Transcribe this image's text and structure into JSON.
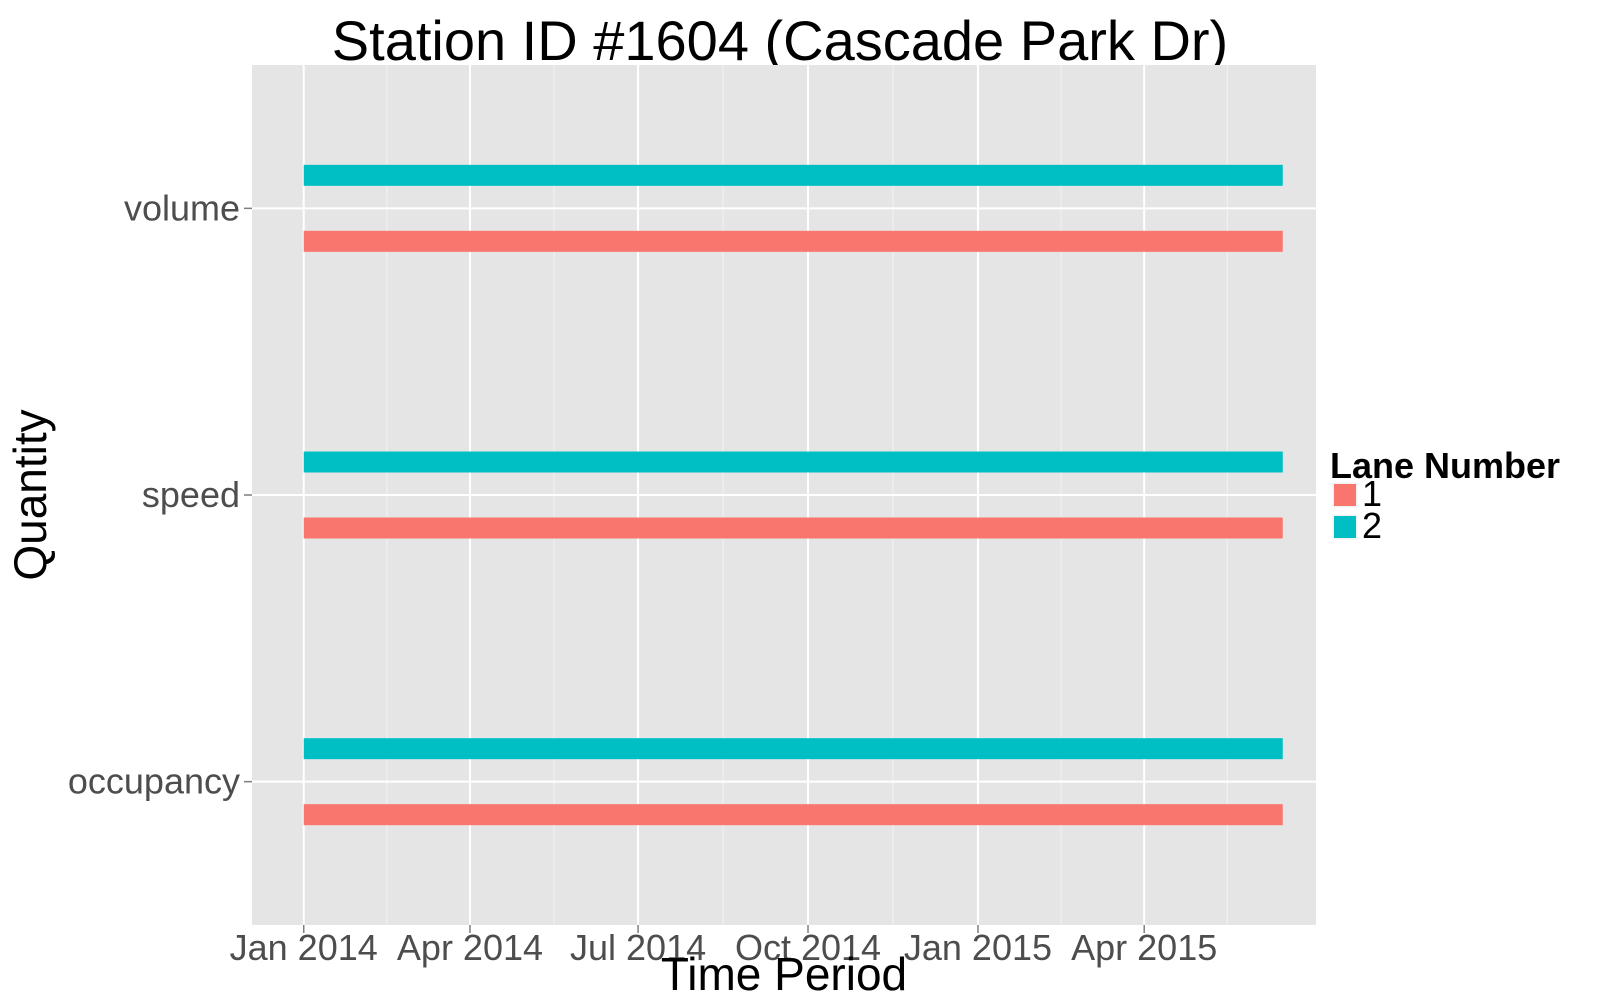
{
  "chart_data": {
    "type": "bar",
    "title": "Station ID #1604 (Cascade Park Dr)",
    "xlabel": "Time Period",
    "ylabel": "Quantity",
    "x_axis_type": "date",
    "x_ticks": [
      "2014-01-01",
      "2014-04-01",
      "2014-07-01",
      "2014-10-01",
      "2015-01-01",
      "2015-04-01"
    ],
    "x_tick_labels": [
      "Jan 2014",
      "Apr 2014",
      "Jul 2014",
      "Oct 2014",
      "Jan 2015",
      "Apr 2015"
    ],
    "xlim": [
      "2013-12-04",
      "2015-07-03"
    ],
    "categories": [
      "volume",
      "speed",
      "occupancy"
    ],
    "legend": {
      "title": "Lane Number",
      "position": "right",
      "entries": [
        "1",
        "2"
      ]
    },
    "grid": true,
    "series": [
      {
        "name": "1",
        "color": "#F8766D",
        "segments": [
          {
            "category": "volume",
            "start": "2014-01-01",
            "end": "2015-06-15"
          },
          {
            "category": "speed",
            "start": "2014-01-01",
            "end": "2015-06-15"
          },
          {
            "category": "occupancy",
            "start": "2014-01-01",
            "end": "2015-06-15"
          }
        ]
      },
      {
        "name": "2",
        "color": "#00BFC4",
        "segments": [
          {
            "category": "volume",
            "start": "2014-01-01",
            "end": "2015-06-15"
          },
          {
            "category": "speed",
            "start": "2014-01-01",
            "end": "2015-06-15"
          },
          {
            "category": "occupancy",
            "start": "2014-01-01",
            "end": "2015-06-15"
          }
        ]
      }
    ]
  }
}
